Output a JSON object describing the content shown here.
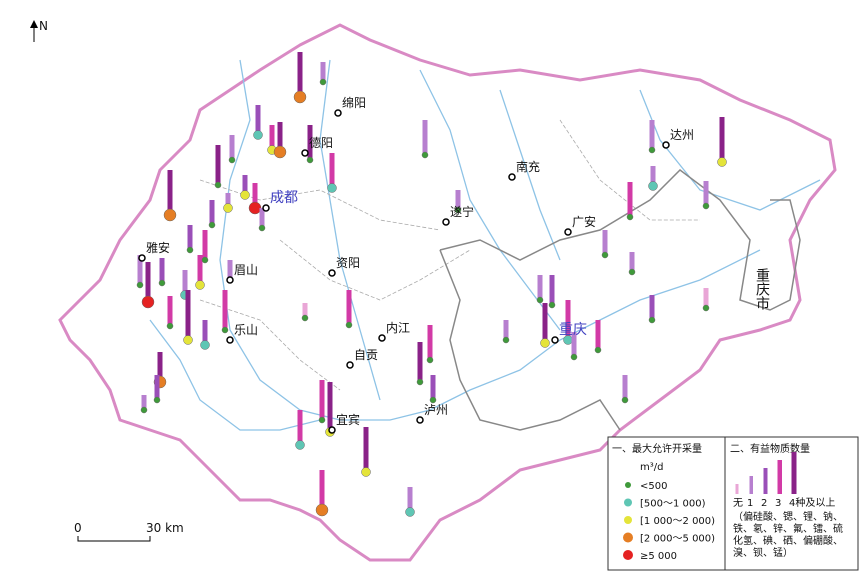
{
  "north": "N",
  "cities": [
    {
      "name": "绵阳"
    },
    {
      "name": "德阳"
    },
    {
      "name": "成都"
    },
    {
      "name": "遂宁"
    },
    {
      "name": "南充"
    },
    {
      "name": "广安"
    },
    {
      "name": "达州"
    },
    {
      "name": "雅安"
    },
    {
      "name": "眉山"
    },
    {
      "name": "资阳"
    },
    {
      "name": "乐山"
    },
    {
      "name": "内江"
    },
    {
      "name": "自贡"
    },
    {
      "name": "宜宾"
    },
    {
      "name": "泸州"
    },
    {
      "name": "重庆"
    }
  ],
  "region_label": "重庆市",
  "scale": {
    "start": "0",
    "end": "30 km"
  },
  "legend": {
    "title1": "一、最大允许开采量",
    "unit": "m³/d",
    "classes": [
      "<500",
      "[500～1 000)",
      "[1 000～2 000)",
      "[2 000～5 000)",
      "≥5 000"
    ],
    "title2": "二、有益物质数量",
    "counts": [
      "无",
      "1",
      "2",
      "3",
      "4种及以上"
    ],
    "note": [
      "（偏硅酸、锶、锂、钠、",
      "铁、氡、锌、氟、镭、硫",
      "化氢、碘、硒、偏硼酸、",
      "溴、钡、锰）"
    ]
  }
}
